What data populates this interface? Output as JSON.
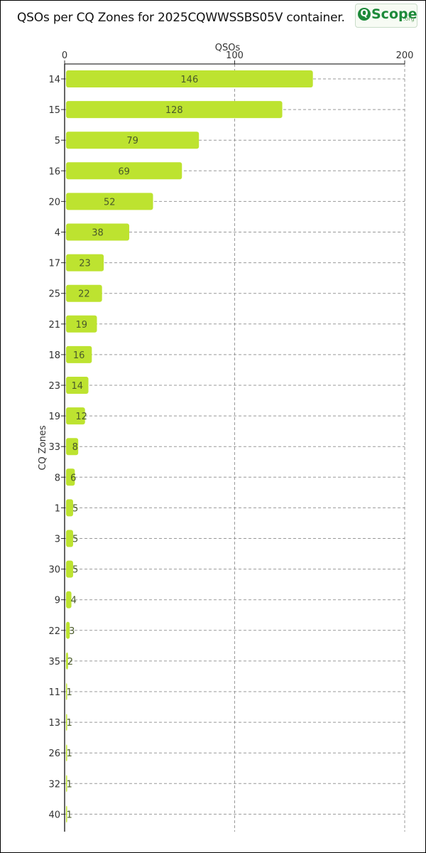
{
  "title": "QSOs per CQ Zones for 2025CQWWSSBS05V container.",
  "logo": {
    "mark": "Q",
    "text": "Scope",
    "suffix": ".org"
  },
  "chart_data": {
    "type": "bar",
    "orientation": "horizontal",
    "xlabel": "QSOs",
    "ylabel": "CQ Zones",
    "xlim": [
      0,
      200
    ],
    "xticks": [
      0,
      100,
      200
    ],
    "xaxis_position": "top",
    "grid": true,
    "bar_color": "#bde330",
    "categories": [
      "14",
      "15",
      "5",
      "16",
      "20",
      "4",
      "17",
      "25",
      "21",
      "18",
      "23",
      "19",
      "33",
      "8",
      "1",
      "3",
      "30",
      "9",
      "22",
      "35",
      "11",
      "13",
      "26",
      "32",
      "40"
    ],
    "values": [
      146,
      128,
      79,
      69,
      52,
      38,
      23,
      22,
      19,
      16,
      14,
      12,
      8,
      6,
      5,
      5,
      5,
      4,
      3,
      2,
      1,
      1,
      1,
      1,
      1
    ]
  }
}
